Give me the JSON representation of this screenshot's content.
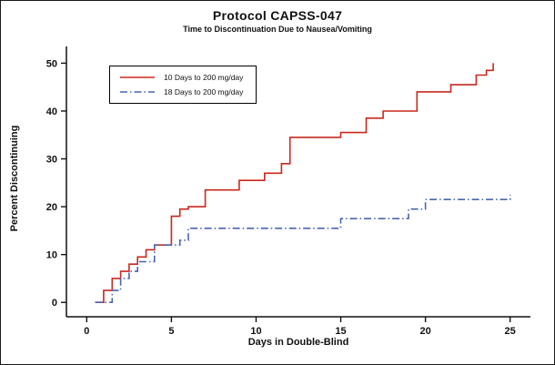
{
  "chart_data": {
    "type": "line",
    "subtype": "step-post",
    "title": "Protocol CAPSS-047",
    "subtitle": "Time to Discontinuation Due to Nausea/Vomiting",
    "xlabel": "Days in Double-Blind",
    "ylabel": "Percent Discontinuing",
    "xlim": [
      -1.2,
      26.2
    ],
    "ylim": [
      -3,
      53.5
    ],
    "x_ticks": [
      0,
      5,
      10,
      15,
      20,
      25
    ],
    "y_ticks": [
      0,
      10,
      20,
      30,
      40,
      50
    ],
    "grid": false,
    "legend_position": "upper-left-inside",
    "series": [
      {
        "name": "10 Days to 200 mg/day",
        "color": "#c8281e",
        "dash": null,
        "points": [
          [
            0.5,
            0
          ],
          [
            1,
            2.5
          ],
          [
            1.5,
            5
          ],
          [
            2,
            6.5
          ],
          [
            2.5,
            8
          ],
          [
            3,
            9.5
          ],
          [
            3.5,
            11
          ],
          [
            4,
            12
          ],
          [
            5,
            18
          ],
          [
            5.5,
            19.5
          ],
          [
            6,
            20
          ],
          [
            7,
            23.5
          ],
          [
            9,
            25.5
          ],
          [
            10.5,
            27
          ],
          [
            11.5,
            29
          ],
          [
            12,
            34.5
          ],
          [
            15,
            35.5
          ],
          [
            16.5,
            38.5
          ],
          [
            17.5,
            40
          ],
          [
            19.5,
            44
          ],
          [
            21.5,
            45.5
          ],
          [
            23,
            47.5
          ],
          [
            23.6,
            48.5
          ],
          [
            24,
            50
          ]
        ]
      },
      {
        "name": "18 Days to 200 mg/day",
        "color": "#4a66ae",
        "dash": "8 3 1.5 3",
        "points": [
          [
            0.5,
            0
          ],
          [
            1.5,
            2.5
          ],
          [
            2,
            5
          ],
          [
            2.5,
            6.5
          ],
          [
            3,
            8.5
          ],
          [
            4,
            12
          ],
          [
            5.5,
            13
          ],
          [
            6,
            15.5
          ],
          [
            15,
            17.5
          ],
          [
            19,
            19.5
          ],
          [
            20,
            21.5
          ],
          [
            25,
            22.5
          ]
        ]
      }
    ]
  }
}
